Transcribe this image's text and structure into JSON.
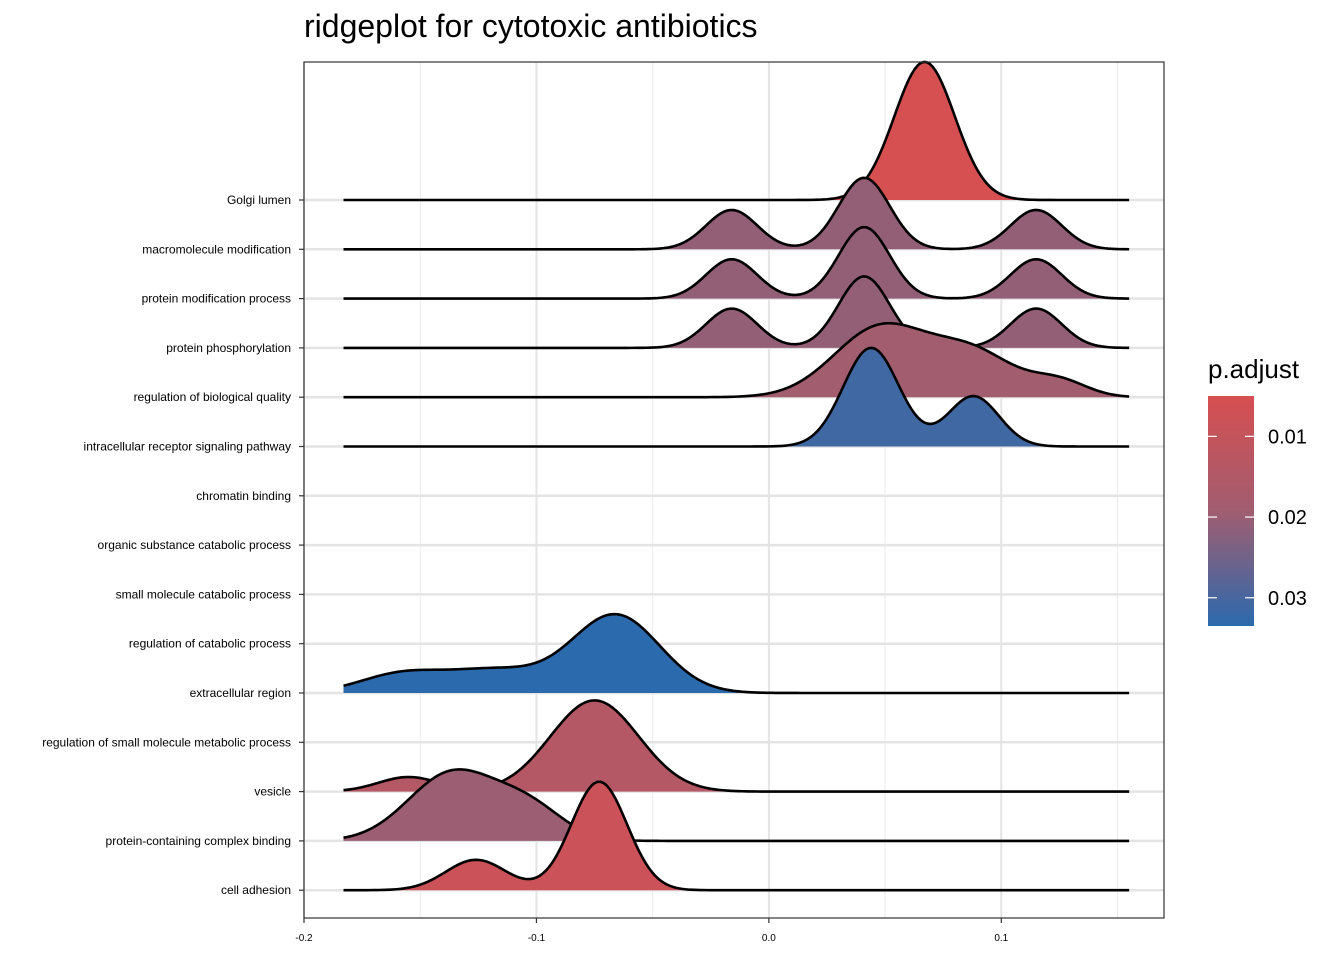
{
  "chart_data": {
    "type": "ridgeline",
    "title": "ridgeplot for cytotoxic antibiotics",
    "xlabel": "",
    "ylabel": "",
    "xlim": [
      -0.2,
      0.17
    ],
    "x_ticks": [
      -0.2,
      -0.1,
      0.0,
      0.1
    ],
    "x_tick_labels": [
      "-0.2",
      "-0.1",
      "0.0",
      "0.1"
    ],
    "x_minor_ticks": [
      -0.15,
      -0.05,
      0.05,
      0.15
    ],
    "grid": true,
    "density_range": [
      -0.183,
      0.155
    ],
    "series": [
      {
        "name": "Golgi lumen",
        "p_adjust": 0.005,
        "peaks": [
          {
            "mu": 0.067,
            "sigma": 0.013,
            "w": 1.0
          }
        ],
        "height": 2.8
      },
      {
        "name": "macromolecule modification",
        "p_adjust": 0.021,
        "peaks": [
          {
            "mu": -0.016,
            "sigma": 0.011,
            "w": 0.55
          },
          {
            "mu": 0.041,
            "sigma": 0.011,
            "w": 1.0
          },
          {
            "mu": 0.115,
            "sigma": 0.011,
            "w": 0.55
          }
        ],
        "height": 1.45
      },
      {
        "name": "protein modification process",
        "p_adjust": 0.021,
        "peaks": [
          {
            "mu": -0.016,
            "sigma": 0.011,
            "w": 0.55
          },
          {
            "mu": 0.041,
            "sigma": 0.011,
            "w": 1.0
          },
          {
            "mu": 0.115,
            "sigma": 0.011,
            "w": 0.55
          }
        ],
        "height": 1.45
      },
      {
        "name": "protein phosphorylation",
        "p_adjust": 0.021,
        "peaks": [
          {
            "mu": -0.016,
            "sigma": 0.011,
            "w": 0.55
          },
          {
            "mu": 0.041,
            "sigma": 0.011,
            "w": 1.0
          },
          {
            "mu": 0.115,
            "sigma": 0.011,
            "w": 0.55
          }
        ],
        "height": 1.45
      },
      {
        "name": "regulation of biological quality",
        "p_adjust": 0.019,
        "peaks": [
          {
            "mu": 0.048,
            "sigma": 0.02,
            "w": 1.0
          },
          {
            "mu": 0.088,
            "sigma": 0.018,
            "w": 0.62
          },
          {
            "mu": 0.125,
            "sigma": 0.012,
            "w": 0.22
          }
        ],
        "height": 1.5
      },
      {
        "name": "intracellular receptor signaling pathway",
        "p_adjust": 0.031,
        "peaks": [
          {
            "mu": 0.044,
            "sigma": 0.012,
            "w": 1.0
          },
          {
            "mu": 0.088,
            "sigma": 0.011,
            "w": 0.51
          }
        ],
        "height": 2.0
      },
      {
        "name": "chromatin binding",
        "p_adjust": null,
        "peaks": [],
        "height": 0
      },
      {
        "name": "organic substance catabolic process",
        "p_adjust": null,
        "peaks": [],
        "height": 0
      },
      {
        "name": "small molecule catabolic process",
        "p_adjust": null,
        "peaks": [],
        "height": 0
      },
      {
        "name": "regulation of catabolic process",
        "p_adjust": null,
        "peaks": [],
        "height": 0
      },
      {
        "name": "extracellular region",
        "p_adjust": 0.034,
        "peaks": [
          {
            "mu": -0.158,
            "sigma": 0.018,
            "w": 0.24
          },
          {
            "mu": -0.118,
            "sigma": 0.02,
            "w": 0.28
          },
          {
            "mu": -0.066,
            "sigma": 0.019,
            "w": 1.0
          }
        ],
        "height": 1.6
      },
      {
        "name": "regulation of small molecule metabolic process",
        "p_adjust": null,
        "peaks": [],
        "height": 0
      },
      {
        "name": "vesicle",
        "p_adjust": 0.014,
        "peaks": [
          {
            "mu": -0.155,
            "sigma": 0.013,
            "w": 0.16
          },
          {
            "mu": -0.075,
            "sigma": 0.019,
            "w": 1.0
          }
        ],
        "height": 1.85
      },
      {
        "name": "protein-containing complex binding",
        "p_adjust": 0.02,
        "peaks": [
          {
            "mu": -0.136,
            "sigma": 0.019,
            "w": 1.0
          },
          {
            "mu": -0.103,
            "sigma": 0.015,
            "w": 0.45
          }
        ],
        "height": 1.45
      },
      {
        "name": "cell adhesion",
        "p_adjust": 0.008,
        "peaks": [
          {
            "mu": -0.126,
            "sigma": 0.013,
            "w": 0.28
          },
          {
            "mu": -0.073,
            "sigma": 0.012,
            "w": 1.0
          }
        ],
        "height": 2.2
      }
    ],
    "legend": {
      "title": "p.adjust",
      "position": "right",
      "range": [
        0.005,
        0.0335
      ],
      "ticks": [
        0.01,
        0.02,
        0.03
      ],
      "tick_labels": [
        "0.01",
        "0.02",
        "0.03"
      ],
      "color_low": "#d64f51",
      "color_mid": "#a15d70",
      "color_high": "#2b6aad"
    }
  }
}
